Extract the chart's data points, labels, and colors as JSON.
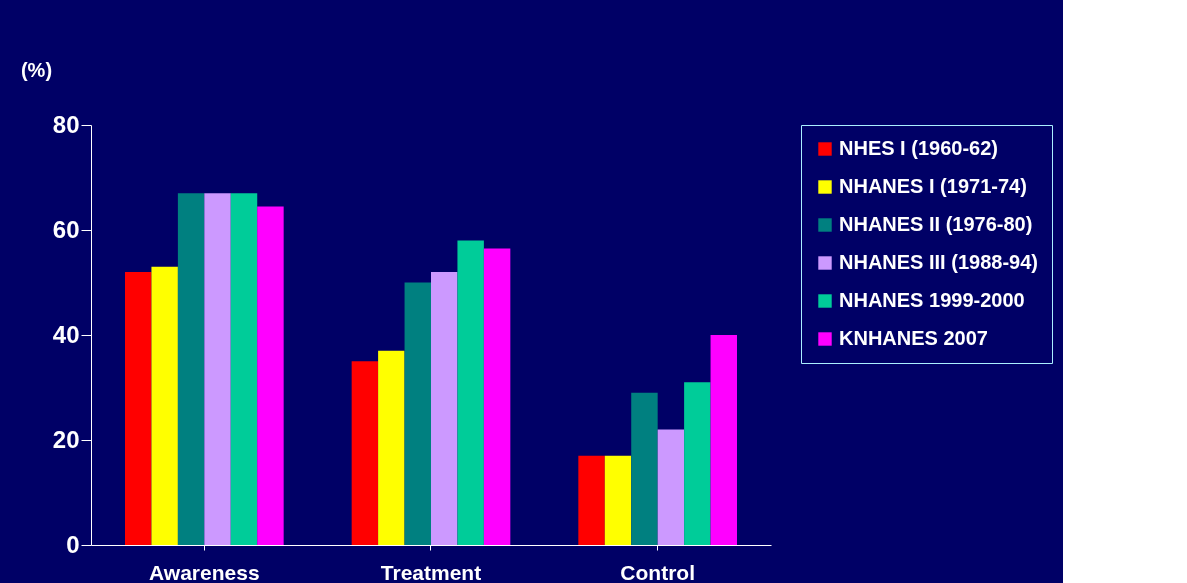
{
  "chart_data": {
    "type": "bar",
    "ylabel": "(%)",
    "categories": [
      "Awareness",
      "Treatment",
      "Control"
    ],
    "series": [
      {
        "name": "NHES I (1960-62)",
        "color": "#ff0000",
        "values": [
          52,
          35,
          17
        ]
      },
      {
        "name": "NHANES I (1971-74)",
        "color": "#ffff00",
        "values": [
          53,
          37,
          17
        ]
      },
      {
        "name": "NHANES II (1976-80)",
        "color": "#008080",
        "values": [
          67,
          50,
          29
        ]
      },
      {
        "name": "NHANES III (1988-94)",
        "color": "#cc99ff",
        "values": [
          67,
          52,
          22
        ]
      },
      {
        "name": "NHANES 1999-2000",
        "color": "#00cc99",
        "values": [
          67,
          58,
          31
        ]
      },
      {
        "name": "KNHANES 2007",
        "color": "#ff00ff",
        "values": [
          64.5,
          56.5,
          40
        ]
      }
    ],
    "ylim": [
      0,
      80
    ],
    "yticks": [
      0,
      20,
      40,
      60,
      80
    ],
    "grid": false,
    "legend": "right"
  }
}
